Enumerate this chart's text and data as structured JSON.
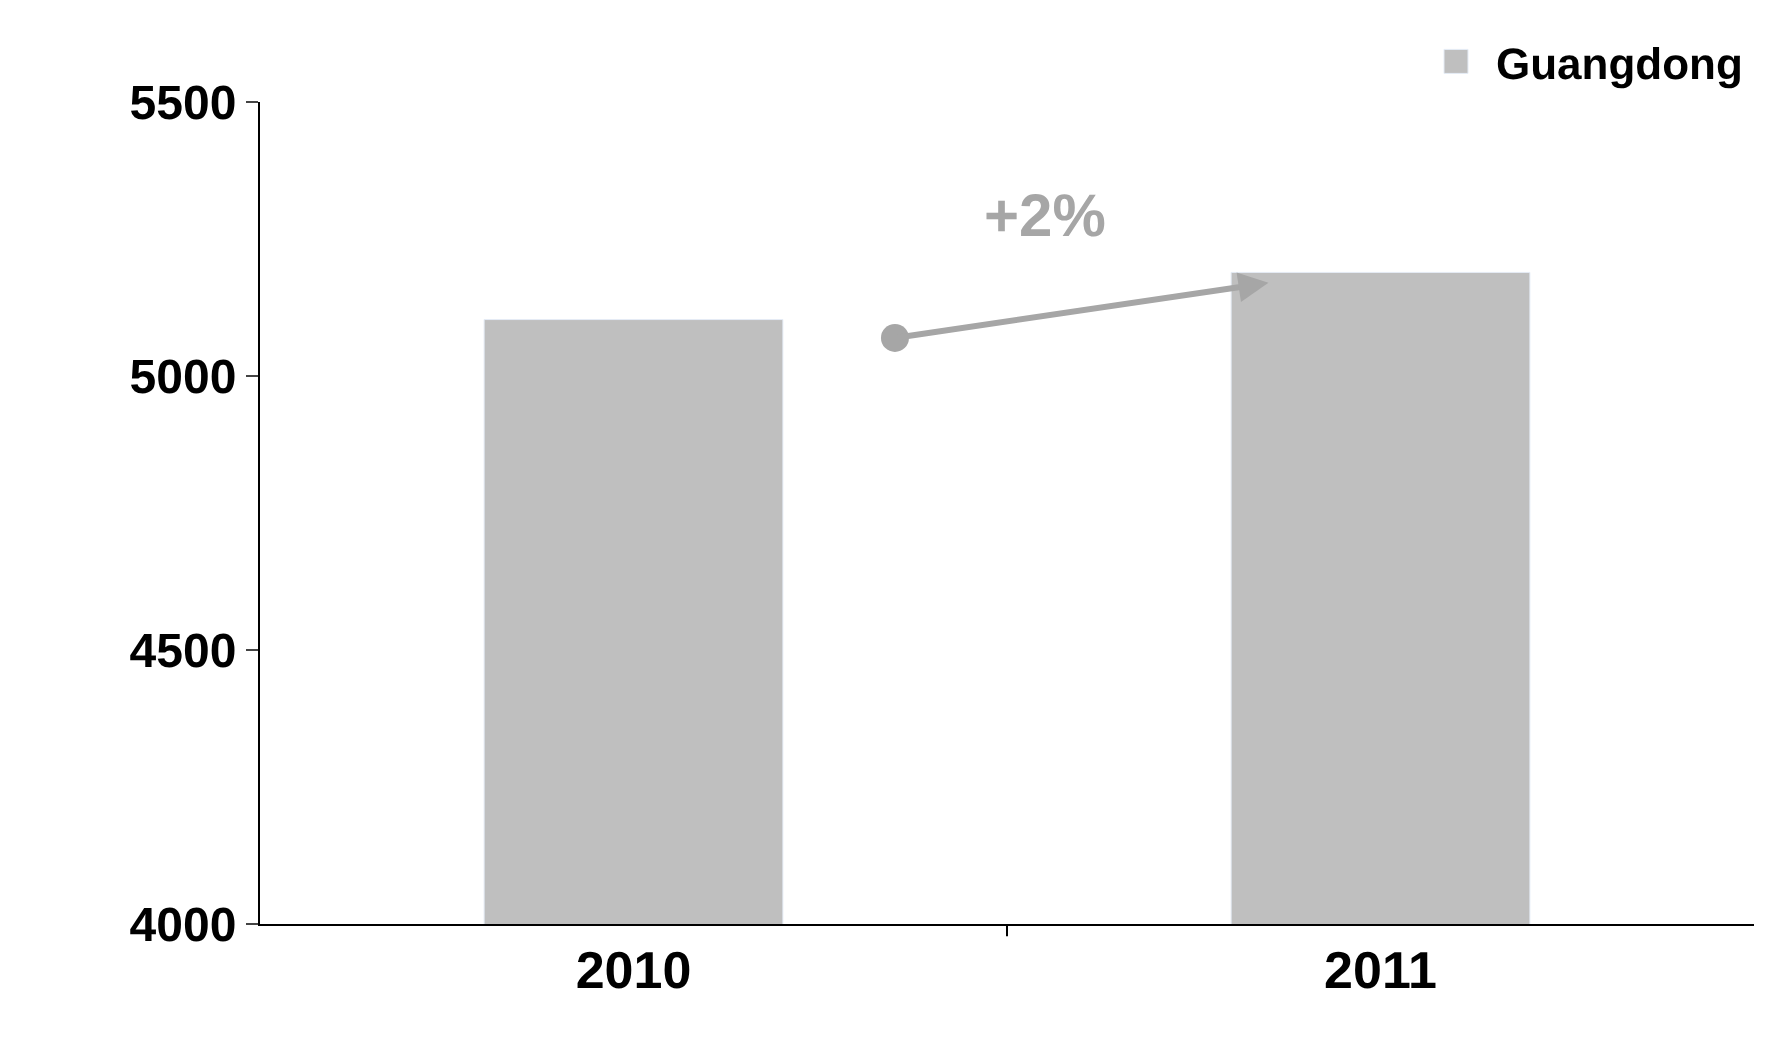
{
  "chart_data": {
    "type": "bar",
    "categories": [
      "2010",
      "2011"
    ],
    "series": [
      {
        "name": "Guangdong",
        "color": "#bfbfbf",
        "values": [
          5103,
          5189
        ]
      }
    ],
    "ylim": [
      4000,
      5500
    ],
    "yticks": [
      4000,
      4500,
      5000,
      5500
    ],
    "legend": "top right",
    "annotations": [
      "+2%"
    ]
  }
}
